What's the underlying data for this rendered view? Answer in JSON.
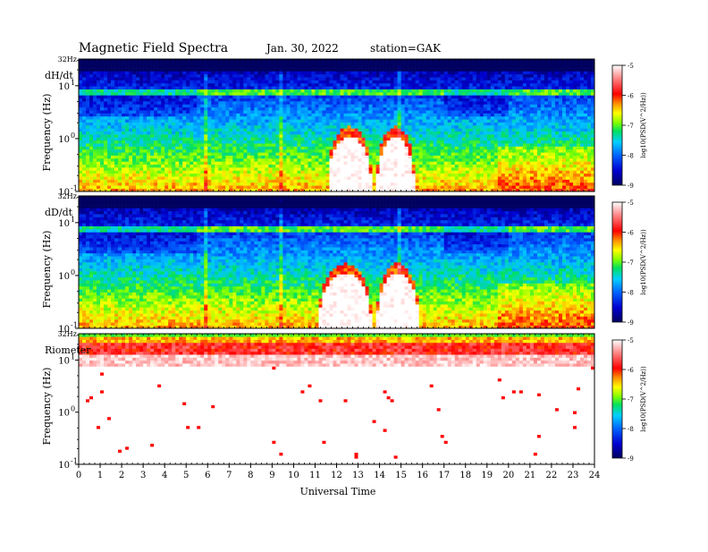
{
  "header": {
    "title": "Magnetic  Field  Spectra",
    "date": "Jan. 30, 2022",
    "station": "station=GAK"
  },
  "chart_data": [
    {
      "type": "heatmap",
      "panel_label": "dH/dt",
      "top_freq_label": "32Hz",
      "ylabel": "Frequency  (Hz)",
      "y_scale": "log",
      "y_ticks": [
        {
          "base": "10",
          "exp": "1",
          "value": 10
        },
        {
          "base": "10",
          "exp": "0",
          "value": 1
        },
        {
          "base": "10",
          "exp": "-1",
          "value": 0.1
        }
      ],
      "x_range": [
        0,
        24
      ],
      "colorbar": {
        "label": "log10(PSD(V^2/Hz))",
        "ticks": [
          "-5",
          "-6",
          "-7",
          "-8",
          "-9"
        ],
        "range": [
          -9,
          -5
        ]
      },
      "features": {
        "line_at_hz": 7.5,
        "white_arcs_ut": [
          [
            11.6,
            13.6
          ],
          [
            13.9,
            15.6
          ]
        ],
        "spikes_ut": [
          5.9,
          6.0,
          9.4,
          14.9
        ]
      }
    },
    {
      "type": "heatmap",
      "panel_label": "dD/dt",
      "top_freq_label": "32Hz",
      "ylabel": "Frequency  (Hz)",
      "y_scale": "log",
      "y_ticks": [
        {
          "base": "10",
          "exp": "1",
          "value": 10
        },
        {
          "base": "10",
          "exp": "0",
          "value": 1
        },
        {
          "base": "10",
          "exp": "-1",
          "value": 0.1
        }
      ],
      "x_range": [
        0,
        24
      ],
      "colorbar": {
        "label": "log10(PSD(V^2/Hz))",
        "ticks": [
          "-5",
          "-6",
          "-7",
          "-8",
          "-9"
        ],
        "range": [
          -9,
          -5
        ]
      },
      "features": {
        "line_at_hz": 7.5,
        "white_arcs_ut": [
          [
            11.2,
            13.6
          ],
          [
            13.9,
            15.8
          ]
        ],
        "spikes_ut": [
          5.9,
          6.0,
          9.4,
          14.9
        ]
      }
    },
    {
      "type": "heatmap",
      "panel_label": "Riometer",
      "top_freq_label": "32Hz",
      "ylabel": "Frequency  (Hz)",
      "y_scale": "log",
      "y_ticks": [
        {
          "base": "10",
          "exp": "1",
          "value": 10
        },
        {
          "base": "10",
          "exp": "0",
          "value": 1
        },
        {
          "base": "10",
          "exp": "-1",
          "value": 0.1
        }
      ],
      "x_range": [
        0,
        24
      ],
      "colorbar": {
        "label": "log10(PSD(V^2/Hz))",
        "ticks": [
          "-5",
          "-6",
          "-7",
          "-8",
          "-9"
        ],
        "range": [
          -9,
          -5
        ]
      },
      "features": {
        "band_upper_hz": 32,
        "band_lower_hz": 8
      }
    }
  ],
  "x_axis": {
    "label": "Universal Time",
    "ticks": [
      "0",
      "1",
      "2",
      "3",
      "4",
      "5",
      "6",
      "7",
      "8",
      "9",
      "10",
      "11",
      "12",
      "13",
      "14",
      "15",
      "16",
      "17",
      "18",
      "19",
      "20",
      "21",
      "22",
      "23",
      "24"
    ]
  },
  "colormap": [
    "#000060",
    "#0000d0",
    "#0060ff",
    "#00c8ff",
    "#00e060",
    "#80ff00",
    "#ffff00",
    "#ff9000",
    "#ff0000",
    "#ffffff"
  ]
}
